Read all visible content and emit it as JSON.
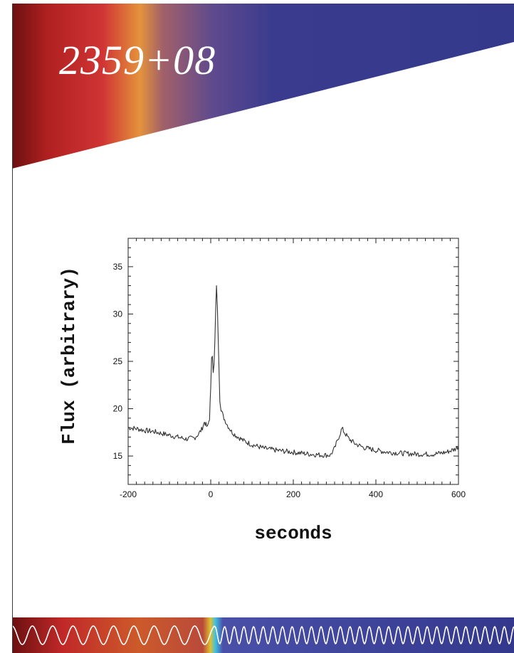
{
  "header": {
    "title": "2359+08",
    "colors": {
      "dark_red": "#7a1414",
      "red": "#cf3030",
      "orange": "#e08a3a",
      "violet": "#6a4a8a",
      "blue": "#363a8c"
    }
  },
  "chart_data": {
    "type": "line",
    "xlabel": "seconds",
    "ylabel": "Flux (arbitrary)",
    "xlim": [
      -200,
      600
    ],
    "ylim": [
      12,
      38
    ],
    "xticks": [
      -200,
      0,
      200,
      400,
      600
    ],
    "yticks": [
      15,
      20,
      25,
      30,
      35
    ],
    "grid": false,
    "series": [
      {
        "color": "#333333",
        "points": [
          [
            -200,
            18.0
          ],
          [
            -180,
            17.9
          ],
          [
            -160,
            17.7
          ],
          [
            -140,
            17.6
          ],
          [
            -120,
            17.4
          ],
          [
            -100,
            17.2
          ],
          [
            -80,
            17.0
          ],
          [
            -60,
            16.8
          ],
          [
            -40,
            16.9
          ],
          [
            -30,
            17.3
          ],
          [
            -22,
            17.8
          ],
          [
            -15,
            18.6
          ],
          [
            -8,
            18.0
          ],
          [
            -3,
            19.0
          ],
          [
            0,
            22.0
          ],
          [
            2,
            25.5
          ],
          [
            4,
            25.8
          ],
          [
            6,
            24.0
          ],
          [
            8,
            24.5
          ],
          [
            10,
            27.0
          ],
          [
            12,
            30.5
          ],
          [
            14,
            32.8
          ],
          [
            16,
            31.0
          ],
          [
            18,
            27.5
          ],
          [
            20,
            24.5
          ],
          [
            22,
            21.0
          ],
          [
            25,
            20.0
          ],
          [
            30,
            19.2
          ],
          [
            40,
            18.3
          ],
          [
            50,
            17.6
          ],
          [
            60,
            17.2
          ],
          [
            80,
            16.6
          ],
          [
            100,
            16.2
          ],
          [
            130,
            15.8
          ],
          [
            160,
            15.6
          ],
          [
            200,
            15.4
          ],
          [
            240,
            15.2
          ],
          [
            270,
            15.1
          ],
          [
            290,
            15.1
          ],
          [
            300,
            15.8
          ],
          [
            310,
            17.0
          ],
          [
            318,
            17.9
          ],
          [
            325,
            17.4
          ],
          [
            335,
            16.8
          ],
          [
            350,
            16.3
          ],
          [
            370,
            15.9
          ],
          [
            400,
            15.6
          ],
          [
            430,
            15.4
          ],
          [
            460,
            15.3
          ],
          [
            500,
            15.2
          ],
          [
            540,
            15.2
          ],
          [
            570,
            15.4
          ],
          [
            590,
            15.7
          ],
          [
            600,
            16.0
          ]
        ]
      }
    ]
  }
}
